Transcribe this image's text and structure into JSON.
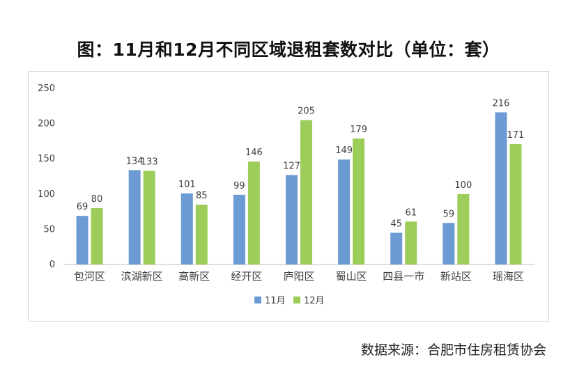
{
  "title": "图：11月和12月不同区域退租套数对比（单位：套）",
  "source": "数据来源：合肥市住房租赁协会",
  "colors": {
    "series1": "#6b9bd2",
    "series2": "#9ccc5a",
    "axis": "#bfbfbf",
    "text": "#404040"
  },
  "chart_data": {
    "type": "bar",
    "title": "图：11月和12月不同区域退租套数对比（单位：套）",
    "xlabel": "",
    "ylabel": "",
    "ylim": [
      0,
      250
    ],
    "yticks": [
      0,
      50,
      100,
      150,
      200,
      250
    ],
    "grid": false,
    "legend": "bottom-center",
    "categories": [
      "包河区",
      "滨湖新区",
      "高新区",
      "经开区",
      "庐阳区",
      "蜀山区",
      "四县一市",
      "新站区",
      "瑶海区"
    ],
    "series": [
      {
        "name": "11月",
        "values": [
          69,
          134,
          101,
          99,
          127,
          149,
          45,
          59,
          216
        ]
      },
      {
        "name": "12月",
        "values": [
          80,
          133,
          85,
          146,
          205,
          179,
          61,
          100,
          171
        ]
      }
    ]
  }
}
